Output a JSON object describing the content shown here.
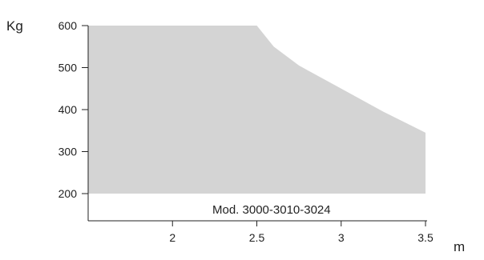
{
  "chart_data": {
    "type": "area",
    "title": "",
    "xlabel": "m",
    "ylabel": "Kg",
    "annotation": "Mod. 3000-3010-3024",
    "xlim": [
      1.5,
      3.5
    ],
    "ylim": [
      200,
      600
    ],
    "x_ticks": [
      2,
      2.5,
      3,
      3.5
    ],
    "x_tick_labels": [
      "2",
      "2.5",
      "3",
      "3.5"
    ],
    "y_ticks": [
      600,
      500,
      400,
      300,
      200
    ],
    "y_tick_labels": [
      "600",
      "500",
      "400",
      "300",
      "200"
    ],
    "baseline": 200,
    "x": [
      1.5,
      2.0,
      2.5,
      2.6,
      2.75,
      3.0,
      3.25,
      3.5
    ],
    "values": [
      600,
      600,
      600,
      550,
      505,
      450,
      395,
      345
    ],
    "grid": false,
    "colors": {
      "fill": "#d4d4d4",
      "axis": "#222222"
    }
  }
}
